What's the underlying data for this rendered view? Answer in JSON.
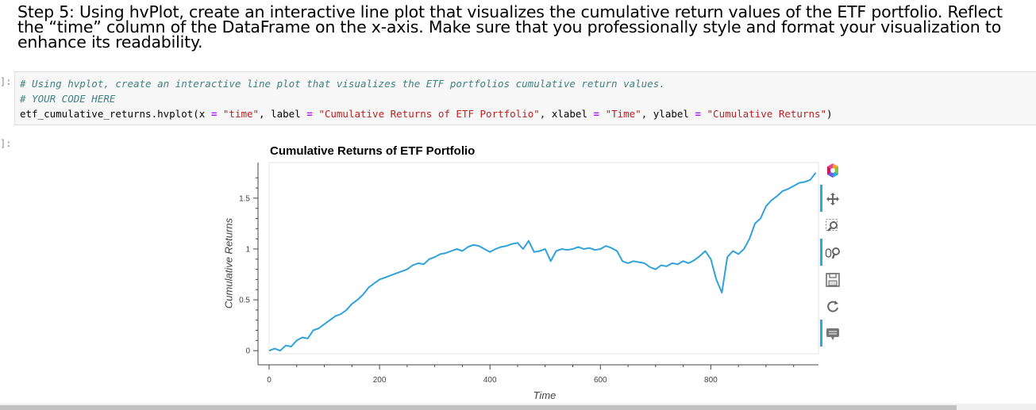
{
  "markdown": {
    "text": "Step 5: Using hvPlot, create an interactive line plot that visualizes the cumulative return values of the ETF portfolio. Reflect the “time” column of the DataFrame on the x-axis. Make sure that you professionally style and format your visualization to enhance its readability."
  },
  "cells": {
    "input_prompt": "]:",
    "output_prompt": "]:",
    "code": {
      "line1": "# Using hvplot, create an interactive line plot that visualizes the ETF portfolios cumulative return values.",
      "line2": "# YOUR CODE HERE",
      "line3": {
        "p1": "etf_cumulative_returns.hvplot(x ",
        "eq1": "=",
        "p2": " ",
        "s1": "\"time\"",
        "p3": ", label ",
        "eq2": "=",
        "p4": " ",
        "s2": "\"Cumulative Returns of ETF Portfolio\"",
        "p5": ", xlabel ",
        "eq3": "=",
        "p6": " ",
        "s3": "\"Time\"",
        "p7": ", ylabel ",
        "eq4": "=",
        "p8": " ",
        "s4": "\"Cumulative Returns\"",
        "p9": ")"
      }
    }
  },
  "toolbar": {
    "tools": [
      "bokeh-logo-icon",
      "pan-icon",
      "box-zoom-icon",
      "wheel-zoom-icon",
      "save-icon",
      "reset-icon",
      "hover-icon"
    ]
  },
  "colors": {
    "line": "#30a2da",
    "accent": "#26aae1"
  },
  "chart_data": {
    "type": "line",
    "title": "Cumulative Returns of ETF Portfolio",
    "xlabel": "Time",
    "ylabel": "Cumulative Returns",
    "xlim": [
      0,
      995
    ],
    "ylim": [
      -0.03,
      1.85
    ],
    "xticks": [
      0,
      200,
      400,
      600,
      800
    ],
    "yticks": [
      0,
      0.5,
      1,
      1.5
    ],
    "ytick_labels": [
      "0",
      "0.5",
      "1",
      "1.5"
    ],
    "legend": "none",
    "grid": false,
    "series": [
      {
        "x": [
          0,
          10,
          20,
          30,
          40,
          50,
          60,
          70,
          80,
          90,
          100,
          110,
          120,
          130,
          140,
          150,
          160,
          170,
          180,
          190,
          200,
          210,
          220,
          230,
          240,
          250,
          260,
          270,
          280,
          290,
          300,
          310,
          320,
          330,
          340,
          350,
          360,
          370,
          380,
          390,
          400,
          410,
          420,
          430,
          440,
          450,
          460,
          470,
          480,
          490,
          500,
          510,
          520,
          530,
          540,
          550,
          560,
          570,
          580,
          590,
          600,
          610,
          620,
          630,
          640,
          650,
          660,
          670,
          680,
          690,
          700,
          710,
          720,
          730,
          740,
          750,
          760,
          770,
          780,
          790,
          800,
          810,
          820,
          830,
          840,
          850,
          860,
          870,
          880,
          890,
          900,
          910,
          920,
          930,
          940,
          950,
          960,
          970,
          980,
          990
        ],
        "y": [
          0.0,
          0.02,
          0.0,
          0.05,
          0.04,
          0.1,
          0.13,
          0.12,
          0.2,
          0.22,
          0.26,
          0.3,
          0.34,
          0.36,
          0.4,
          0.46,
          0.5,
          0.55,
          0.62,
          0.66,
          0.7,
          0.72,
          0.74,
          0.76,
          0.78,
          0.8,
          0.84,
          0.86,
          0.85,
          0.9,
          0.92,
          0.95,
          0.96,
          0.98,
          1.0,
          0.98,
          1.02,
          1.04,
          1.03,
          1.0,
          0.97,
          1.0,
          1.02,
          1.03,
          1.05,
          1.06,
          1.0,
          1.08,
          0.97,
          0.98,
          1.0,
          0.88,
          0.98,
          1.0,
          0.99,
          1.0,
          1.02,
          1.0,
          1.01,
          0.99,
          1.0,
          1.03,
          1.01,
          0.98,
          0.88,
          0.86,
          0.88,
          0.87,
          0.86,
          0.82,
          0.8,
          0.84,
          0.83,
          0.86,
          0.85,
          0.88,
          0.86,
          0.89,
          0.93,
          0.98,
          0.9,
          0.7,
          0.57,
          0.92,
          0.98,
          0.95,
          1.0,
          1.1,
          1.25,
          1.3,
          1.42,
          1.48,
          1.52,
          1.57,
          1.59,
          1.62,
          1.65,
          1.66,
          1.68,
          1.75
        ]
      }
    ]
  }
}
